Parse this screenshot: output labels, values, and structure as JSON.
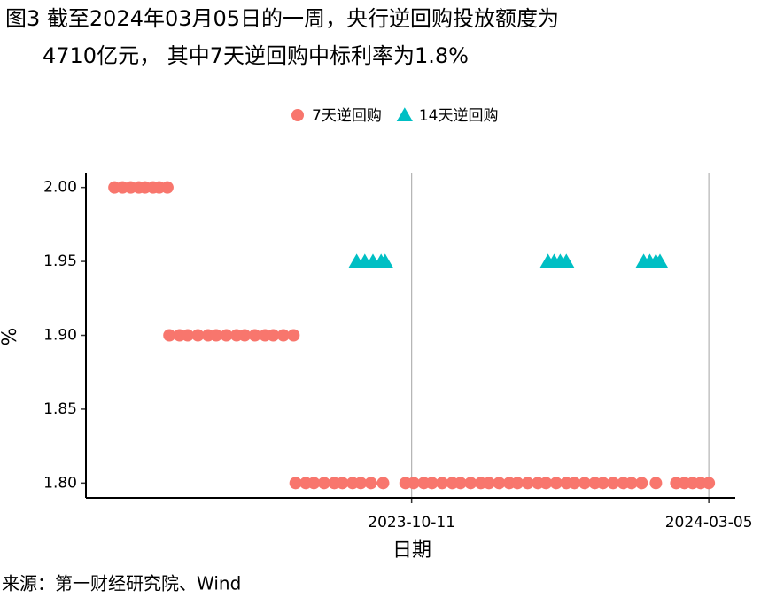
{
  "chart_data": {
    "type": "scatter",
    "title": [
      "图3  截至2024年03月05日的一周，央行逆回购投放额度为",
      "4710亿元， 其中7天逆回购中标利率为1.8%"
    ],
    "x_label": "日期",
    "y_label": "%",
    "source": "来源：第一财经研究院、Wind",
    "xlim": [
      "2023-05-04",
      "2024-03-18"
    ],
    "xticks": [
      "2023-10-11",
      "2024-03-05"
    ],
    "ylim": [
      1.79,
      2.01
    ],
    "yticks": [
      {
        "value": 1.8,
        "label": "1.80"
      },
      {
        "value": 1.85,
        "label": "1.85"
      },
      {
        "value": 1.9,
        "label": "1.90"
      },
      {
        "value": 1.95,
        "label": "1.95"
      },
      {
        "value": 2,
        "label": "2.00"
      }
    ],
    "grid": "x",
    "legend": "top",
    "series": [
      {
        "name": "7天逆回购",
        "color": "#f8766d",
        "marker": "circle",
        "x": [
          "2023-05-18",
          "2023-05-22",
          "2023-05-26",
          "2023-05-30",
          "2023-06-02",
          "2023-06-06",
          "2023-06-09",
          "2023-06-13",
          "2023-06-14",
          "2023-06-19",
          "2023-06-23",
          "2023-06-28",
          "2023-07-03",
          "2023-07-07",
          "2023-07-12",
          "2023-07-17",
          "2023-07-21",
          "2023-07-26",
          "2023-07-31",
          "2023-08-04",
          "2023-08-09",
          "2023-08-14",
          "2023-08-15",
          "2023-08-20",
          "2023-08-24",
          "2023-08-29",
          "2023-09-03",
          "2023-09-07",
          "2023-09-12",
          "2023-09-16",
          "2023-09-21",
          "2023-09-27",
          "2023-10-08",
          "2023-10-12",
          "2023-10-17",
          "2023-10-21",
          "2023-10-26",
          "2023-10-31",
          "2023-11-04",
          "2023-11-09",
          "2023-11-14",
          "2023-11-18",
          "2023-11-23",
          "2023-11-28",
          "2023-12-02",
          "2023-12-07",
          "2023-12-12",
          "2023-12-16",
          "2023-12-21",
          "2023-12-26",
          "2023-12-30",
          "2024-01-04",
          "2024-01-09",
          "2024-01-13",
          "2024-01-18",
          "2024-01-23",
          "2024-01-27",
          "2024-02-01",
          "2024-02-08",
          "2024-02-18",
          "2024-02-22",
          "2024-02-26",
          "2024-03-01",
          "2024-03-05"
        ],
        "values": [
          2,
          2,
          2,
          2,
          2,
          2,
          2,
          2,
          1.9,
          1.9,
          1.9,
          1.9,
          1.9,
          1.9,
          1.9,
          1.9,
          1.9,
          1.9,
          1.9,
          1.9,
          1.9,
          1.9,
          1.8,
          1.8,
          1.8,
          1.8,
          1.8,
          1.8,
          1.8,
          1.8,
          1.8,
          1.8,
          1.8,
          1.8,
          1.8,
          1.8,
          1.8,
          1.8,
          1.8,
          1.8,
          1.8,
          1.8,
          1.8,
          1.8,
          1.8,
          1.8,
          1.8,
          1.8,
          1.8,
          1.8,
          1.8,
          1.8,
          1.8,
          1.8,
          1.8,
          1.8,
          1.8,
          1.8,
          1.8,
          1.8,
          1.8,
          1.8,
          1.8,
          1.8
        ]
      },
      {
        "name": "14天逆回购",
        "color": "#00bfc4",
        "marker": "triangle",
        "x": [
          "2023-09-14",
          "2023-09-18",
          "2023-09-22",
          "2023-09-26",
          "2023-09-28",
          "2023-12-17",
          "2023-12-20",
          "2023-12-23",
          "2023-12-26",
          "2024-02-02",
          "2024-02-05",
          "2024-02-08",
          "2024-02-10"
        ],
        "values": [
          1.95,
          1.95,
          1.95,
          1.95,
          1.95,
          1.95,
          1.95,
          1.95,
          1.95,
          1.95,
          1.95,
          1.95,
          1.95
        ]
      }
    ]
  }
}
